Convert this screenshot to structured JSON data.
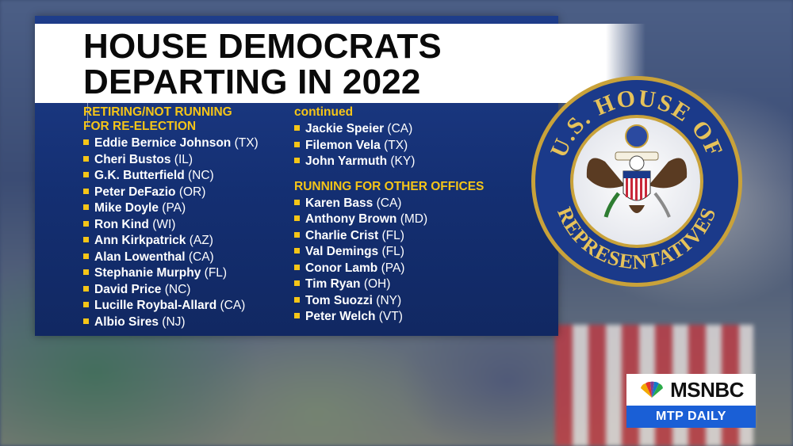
{
  "title": {
    "line1": "HOUSE DEMOCRATS",
    "line2": "DEPARTING IN 2022"
  },
  "retiring": {
    "heading_line1": "RETIRING/NOT RUNNING",
    "heading_line2": "FOR RE-ELECTION",
    "continued_label": "continued",
    "members": [
      {
        "name": "Eddie Bernice Johnson",
        "state": "(TX)"
      },
      {
        "name": "Cheri Bustos",
        "state": "(IL)"
      },
      {
        "name": "G.K. Butterfield",
        "state": "(NC)"
      },
      {
        "name": "Peter DeFazio",
        "state": "(OR)"
      },
      {
        "name": "Mike Doyle",
        "state": "(PA)"
      },
      {
        "name": "Ron Kind",
        "state": "(WI)"
      },
      {
        "name": "Ann Kirkpatrick",
        "state": "(AZ)"
      },
      {
        "name": "Alan Lowenthal",
        "state": "(CA)"
      },
      {
        "name": "Stephanie Murphy",
        "state": "(FL)"
      },
      {
        "name": "David Price",
        "state": "(NC)"
      },
      {
        "name": "Lucille Roybal-Allard",
        "state": "(CA)"
      },
      {
        "name": "Albio Sires",
        "state": "(NJ)"
      },
      {
        "name": "Jackie Speier",
        "state": "(CA)"
      },
      {
        "name": "Filemon Vela",
        "state": "(TX)"
      },
      {
        "name": "John Yarmuth",
        "state": "(KY)"
      }
    ]
  },
  "other_offices": {
    "heading": "RUNNING FOR OTHER OFFICES",
    "members": [
      {
        "name": "Karen Bass",
        "state": "(CA)"
      },
      {
        "name": "Anthony Brown",
        "state": "(MD)"
      },
      {
        "name": "Charlie Crist",
        "state": "(FL)"
      },
      {
        "name": "Val Demings",
        "state": "(FL)"
      },
      {
        "name": "Conor Lamb",
        "state": "(PA)"
      },
      {
        "name": "Tim Ryan",
        "state": "(OH)"
      },
      {
        "name": "Tom Suozzi",
        "state": "(NY)"
      },
      {
        "name": "Peter Welch",
        "state": "(VT)"
      }
    ]
  },
  "seal": {
    "top_text": "U.S. HOUSE OF",
    "bottom_text": "REPRESENTATIVES"
  },
  "logo": {
    "brand": "MSNBC",
    "show": "MTP DAILY"
  },
  "colors": {
    "panel": "#142f72",
    "accent": "#f5c518",
    "logo_blue": "#1a5fd6"
  }
}
